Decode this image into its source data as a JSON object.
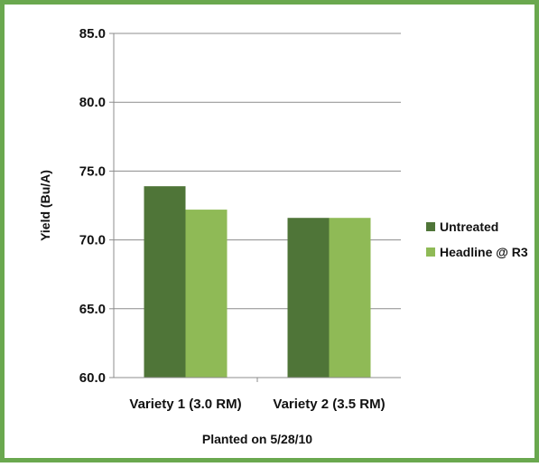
{
  "chart_data": {
    "type": "bar",
    "categories": [
      "Variety 1 (3.0 RM)",
      "Variety 2 (3.5 RM)"
    ],
    "series": [
      {
        "name": "Untreated",
        "values": [
          73.9,
          71.6
        ],
        "color": "#4f7538"
      },
      {
        "name": "Headline @ R3",
        "values": [
          72.2,
          71.6
        ],
        "color": "#8fba56"
      }
    ],
    "xlabel": "Planted on 5/28/10",
    "ylabel": "Yield (Bu/A)",
    "ylim": [
      60,
      85
    ],
    "yticks": [
      "60.0",
      "65.0",
      "70.0",
      "75.0",
      "80.0",
      "85.0"
    ],
    "grid": true,
    "legend_position": "right"
  }
}
